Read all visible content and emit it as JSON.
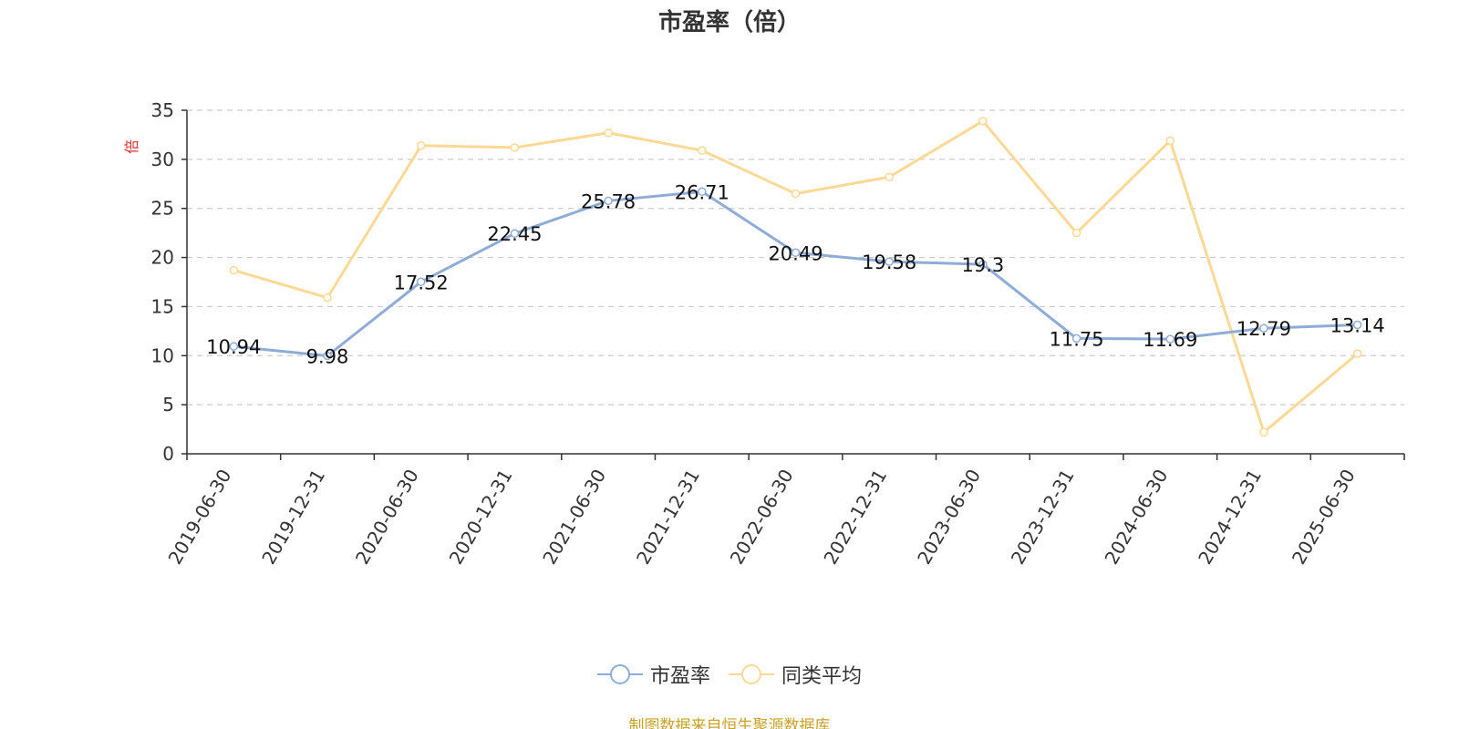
{
  "title": "市盈率（倍）",
  "source_note": "制图数据来自恒生聚源数据库",
  "colors": {
    "pe": "#8eacd8",
    "avg": "#fbd995",
    "grid": "#cccccc",
    "axis": "#333333",
    "unit": "#e03030",
    "source": "#c9a227"
  },
  "chart_data": {
    "type": "line",
    "title": "市盈率（倍）",
    "ylabel": "倍",
    "xlabel": "",
    "ylim": [
      0,
      35
    ],
    "yticks": [
      0,
      5,
      10,
      15,
      20,
      25,
      30,
      35
    ],
    "grid": true,
    "legend_position": "bottom-center",
    "categories": [
      "2019-06-30",
      "2019-12-31",
      "2020-06-30",
      "2020-12-31",
      "2021-06-30",
      "2021-12-31",
      "2022-06-30",
      "2022-12-31",
      "2023-06-30",
      "2023-12-31",
      "2024-06-30",
      "2024-12-31",
      "2025-06-30"
    ],
    "series": [
      {
        "name": "市盈率",
        "values": [
          10.94,
          9.98,
          17.52,
          22.45,
          25.78,
          26.71,
          20.49,
          19.58,
          19.3,
          11.75,
          11.69,
          12.79,
          13.14
        ],
        "data_labels": [
          "10.94",
          "9.98",
          "17.52",
          "22.45",
          "25.78",
          "26.71",
          "20.49",
          "19.58",
          "19.3",
          "11.75",
          "11.69",
          "12.79",
          "13.14"
        ]
      },
      {
        "name": "同类平均",
        "values": [
          18.7,
          15.9,
          31.4,
          31.2,
          32.7,
          30.9,
          26.5,
          28.2,
          33.9,
          22.5,
          31.9,
          2.2,
          10.2
        ]
      }
    ]
  }
}
